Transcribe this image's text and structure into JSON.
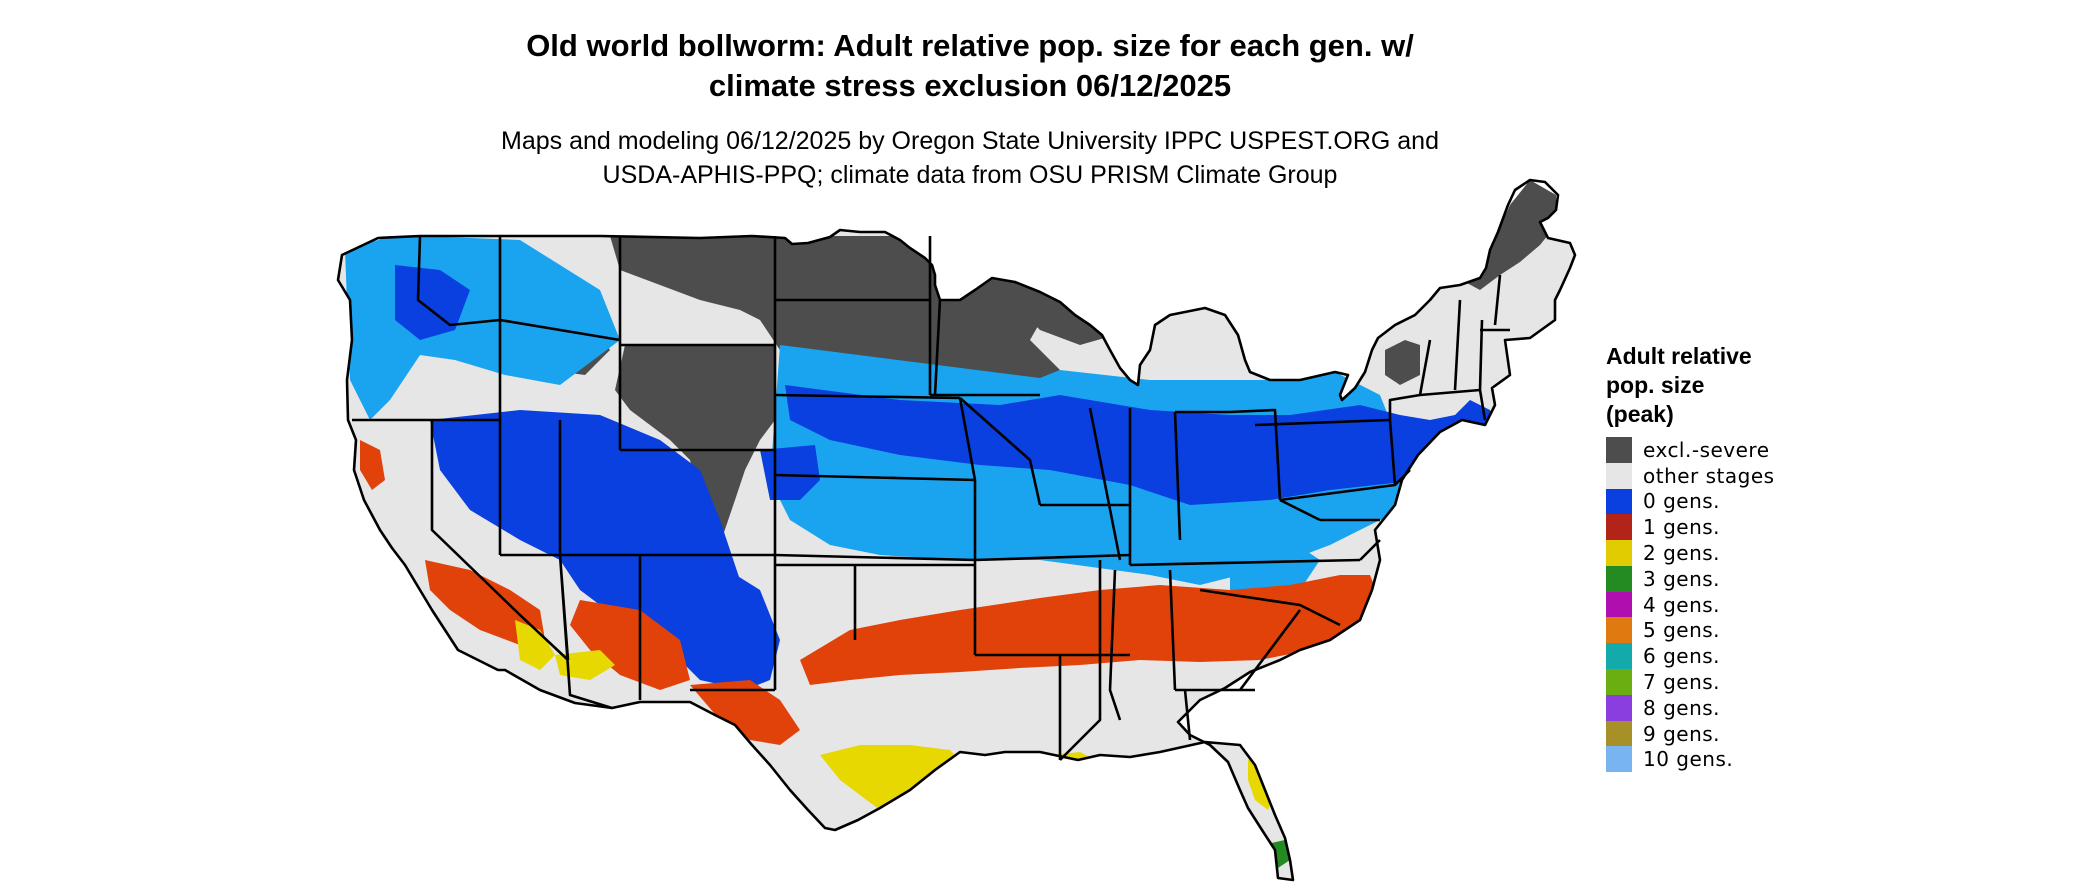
{
  "title": {
    "line1": "Old world bollworm: Adult relative pop. size for each gen. w/",
    "line2": "climate stress exclusion 06/12/2025"
  },
  "subtitle": {
    "line1": "Maps and modeling 06/12/2025 by Oregon State University IPPC USPEST.ORG and",
    "line2": "USDA-APHIS-PPQ; climate data from OSU PRISM Climate Group"
  },
  "legend": {
    "title_lines": [
      "Adult relative",
      "pop. size",
      "(peak)"
    ],
    "items": [
      {
        "label": "excl.-severe",
        "color": "#4d4d4d"
      },
      {
        "label": "other stages",
        "color": "#e6e6e6"
      },
      {
        "label": "0 gens.",
        "color": "#0a3fe0"
      },
      {
        "label": "1 gens.",
        "color": "#b22418"
      },
      {
        "label": "2 gens.",
        "color": "#e0cc00"
      },
      {
        "label": "3 gens.",
        "color": "#238b22"
      },
      {
        "label": "4 gens.",
        "color": "#b00fb0"
      },
      {
        "label": "5 gens.",
        "color": "#e07a10"
      },
      {
        "label": "6 gens.",
        "color": "#12aaaa"
      },
      {
        "label": "7 gens.",
        "color": "#6aae12"
      },
      {
        "label": "8 gens.",
        "color": "#8a3ee0"
      },
      {
        "label": "9 gens.",
        "color": "#a89028"
      },
      {
        "label": "10 gens.",
        "color": "#78b4f0"
      }
    ]
  },
  "map_colors": {
    "base": "#e6e6e6",
    "excluded": "#4d4d4d",
    "zero_gen": "#0a3fe0",
    "zero_gen_light": "#1aa4f0",
    "one_gen": "#e0420a",
    "two_gen": "#e6d800",
    "three_gen": "#238b22",
    "borders": "#000000"
  }
}
